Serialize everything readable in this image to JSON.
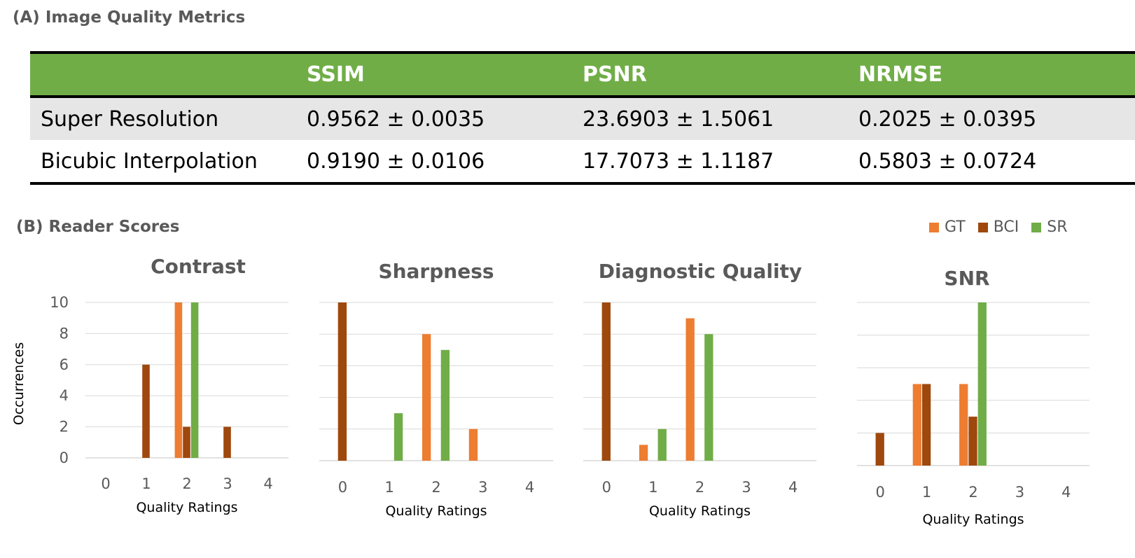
{
  "section_a": {
    "label": "(A) Image Quality Metrics"
  },
  "section_b": {
    "label": "(B) Reader Scores"
  },
  "table": {
    "headers": [
      "",
      "SSIM",
      "PSNR",
      "NRMSE"
    ],
    "rows": [
      [
        "Super Resolution",
        "0.9562 ± 0.0035",
        "23.6903 ± 1.5061",
        "0.2025 ± 0.0395"
      ],
      [
        "Bicubic Interpolation",
        "0.9190 ± 0.0106",
        "17.7073 ± 1.1187",
        "0.5803 ± 0.0724"
      ]
    ],
    "header_color": "#70ad47",
    "stripe_color": "#e7e6e6"
  },
  "legend": [
    {
      "name": "GT",
      "color": "#ed7d31"
    },
    {
      "name": "BCI",
      "color": "#9e480e"
    },
    {
      "name": "SR",
      "color": "#70ad47"
    }
  ],
  "chart_data": [
    {
      "type": "bar",
      "title": "Contrast",
      "categories": [
        "0",
        "1",
        "2",
        "3",
        "4"
      ],
      "xlabel": "Quality Ratings",
      "ylabel": "Occurrences",
      "ylim": [
        0,
        10
      ],
      "yticks": [
        "0",
        "2",
        "4",
        "6",
        "8",
        "10"
      ],
      "series": [
        {
          "name": "GT",
          "values": [
            0,
            0,
            10,
            0,
            0
          ]
        },
        {
          "name": "BCI",
          "values": [
            0,
            6,
            2,
            2,
            0
          ]
        },
        {
          "name": "SR",
          "values": [
            0,
            0,
            10,
            0,
            0
          ]
        }
      ]
    },
    {
      "type": "bar",
      "title": "Sharpness",
      "categories": [
        "0",
        "1",
        "2",
        "3",
        "4"
      ],
      "xlabel": "Quality Ratings",
      "ylim": [
        0,
        10
      ],
      "series": [
        {
          "name": "GT",
          "values": [
            0,
            0,
            8,
            2,
            0
          ]
        },
        {
          "name": "BCI",
          "values": [
            10,
            0,
            0,
            0,
            0
          ]
        },
        {
          "name": "SR",
          "values": [
            0,
            3,
            7,
            0,
            0
          ]
        }
      ]
    },
    {
      "type": "bar",
      "title": "Diagnostic Quality",
      "categories": [
        "0",
        "1",
        "2",
        "3",
        "4"
      ],
      "xlabel": "Quality Ratings",
      "ylim": [
        0,
        10
      ],
      "series": [
        {
          "name": "GT",
          "values": [
            0,
            1,
            9,
            0,
            0
          ]
        },
        {
          "name": "BCI",
          "values": [
            10,
            0,
            0,
            0,
            0
          ]
        },
        {
          "name": "SR",
          "values": [
            0,
            2,
            8,
            0,
            0
          ]
        }
      ]
    },
    {
      "type": "bar",
      "title": "SNR",
      "categories": [
        "0",
        "1",
        "2",
        "3",
        "4"
      ],
      "xlabel": "Quality Ratings",
      "ylim": [
        0,
        10
      ],
      "series": [
        {
          "name": "GT",
          "values": [
            0,
            5,
            5,
            0,
            0
          ]
        },
        {
          "name": "BCI",
          "values": [
            2,
            5,
            3,
            0,
            0
          ]
        },
        {
          "name": "SR",
          "values": [
            0,
            0,
            10,
            0,
            0
          ]
        }
      ]
    }
  ]
}
